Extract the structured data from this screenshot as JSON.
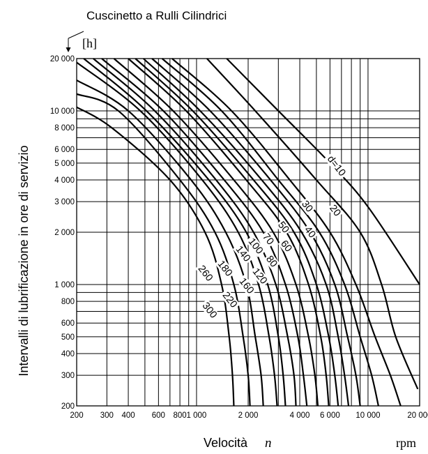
{
  "chart_data": {
    "type": "line",
    "title": "Cuscinetto a Rulli Cilindrici",
    "xlabel": "Velocità",
    "xlabel_symbol": "n",
    "xunit": "rpm",
    "ylabel": "Intervalli di lubrificazione in ore di servizio",
    "yunit": "[h]",
    "x_scale": "log",
    "y_scale": "log",
    "xlim": [
      200,
      20000
    ],
    "ylim": [
      200,
      20000
    ],
    "grid": true,
    "x_ticks": [
      {
        "value": 200,
        "label": "200"
      },
      {
        "value": 300,
        "label": "300"
      },
      {
        "value": 400,
        "label": "400"
      },
      {
        "value": 600,
        "label": "600"
      },
      {
        "value": 800,
        "label": "800"
      },
      {
        "value": 1000,
        "label": "1 000"
      },
      {
        "value": 2000,
        "label": "2 000"
      },
      {
        "value": 4000,
        "label": "4 000"
      },
      {
        "value": 6000,
        "label": "6 000"
      },
      {
        "value": 10000,
        "label": "10 000"
      },
      {
        "value": 20000,
        "label": "20 000"
      }
    ],
    "x_grid": [
      200,
      300,
      400,
      500,
      600,
      700,
      800,
      900,
      1000,
      2000,
      3000,
      4000,
      5000,
      6000,
      7000,
      8000,
      9000,
      10000,
      20000
    ],
    "y_ticks": [
      {
        "value": 200,
        "label": "200"
      },
      {
        "value": 300,
        "label": "300"
      },
      {
        "value": 400,
        "label": "400"
      },
      {
        "value": 500,
        "label": "500"
      },
      {
        "value": 600,
        "label": "600"
      },
      {
        "value": 800,
        "label": "800"
      },
      {
        "value": 1000,
        "label": "1 000"
      },
      {
        "value": 2000,
        "label": "2 000"
      },
      {
        "value": 3000,
        "label": "3 000"
      },
      {
        "value": 4000,
        "label": "4 000"
      },
      {
        "value": 5000,
        "label": "5 000"
      },
      {
        "value": 6000,
        "label": "6 000"
      },
      {
        "value": 8000,
        "label": "8 000"
      },
      {
        "value": 10000,
        "label": "10 000"
      },
      {
        "value": 20000,
        "label": "20 000"
      }
    ],
    "y_grid": [
      200,
      300,
      400,
      500,
      600,
      700,
      800,
      900,
      1000,
      2000,
      3000,
      4000,
      5000,
      6000,
      7000,
      8000,
      9000,
      10000,
      20000
    ],
    "series": [
      {
        "name": "d=10",
        "label": "d=10",
        "points": [
          [
            1500,
            20000
          ],
          [
            3000,
            10000
          ],
          [
            6000,
            5000
          ],
          [
            10000,
            2800
          ],
          [
            20000,
            1000
          ]
        ]
      },
      {
        "name": "20",
        "label": "20",
        "points": [
          [
            1150,
            20000
          ],
          [
            2200,
            10000
          ],
          [
            5000,
            4000
          ],
          [
            9000,
            2000
          ],
          [
            12000,
            1000
          ],
          [
            14500,
            500
          ],
          [
            19500,
            250
          ]
        ]
      },
      {
        "name": "30",
        "label": "30",
        "points": [
          [
            720,
            20000
          ],
          [
            1600,
            10000
          ],
          [
            3500,
            4000
          ],
          [
            6000,
            2000
          ],
          [
            8500,
            1000
          ],
          [
            11000,
            500
          ],
          [
            13500,
            300
          ],
          [
            15500,
            200
          ]
        ]
      },
      {
        "name": "40",
        "label": "40",
        "points": [
          [
            630,
            20000
          ],
          [
            1400,
            10000
          ],
          [
            3000,
            4000
          ],
          [
            5200,
            2000
          ],
          [
            7300,
            1000
          ],
          [
            9000,
            500
          ],
          [
            10500,
            300
          ],
          [
            11500,
            200
          ]
        ]
      },
      {
        "name": "50",
        "label": "50",
        "points": [
          [
            550,
            20000
          ],
          [
            1200,
            10000
          ],
          [
            2700,
            4000
          ],
          [
            4600,
            2000
          ],
          [
            6400,
            1000
          ],
          [
            7600,
            500
          ],
          [
            8500,
            300
          ],
          [
            9000,
            200
          ]
        ]
      },
      {
        "name": "60",
        "label": "60",
        "points": [
          [
            490,
            20000
          ],
          [
            1050,
            10000
          ],
          [
            2400,
            4000
          ],
          [
            4100,
            2000
          ],
          [
            5700,
            1000
          ],
          [
            6700,
            500
          ],
          [
            7300,
            300
          ],
          [
            7700,
            200
          ]
        ]
      },
      {
        "name": "70",
        "label": "70",
        "points": [
          [
            440,
            20000
          ],
          [
            950,
            10000
          ],
          [
            2150,
            4000
          ],
          [
            3700,
            2000
          ],
          [
            5000,
            1000
          ],
          [
            5900,
            500
          ],
          [
            6400,
            300
          ],
          [
            6700,
            200
          ]
        ]
      },
      {
        "name": "80",
        "label": "80",
        "points": [
          [
            400,
            20000
          ],
          [
            870,
            10000
          ],
          [
            1950,
            4000
          ],
          [
            3350,
            2000
          ],
          [
            4500,
            1000
          ],
          [
            5300,
            500
          ],
          [
            5700,
            300
          ],
          [
            5900,
            200
          ]
        ]
      },
      {
        "name": "100",
        "label": "100",
        "points": [
          [
            330,
            20000
          ],
          [
            730,
            10000
          ],
          [
            1650,
            4000
          ],
          [
            2800,
            2000
          ],
          [
            3800,
            1000
          ],
          [
            4500,
            500
          ],
          [
            4900,
            300
          ],
          [
            5100,
            200
          ]
        ]
      },
      {
        "name": "120",
        "label": "120",
        "points": [
          [
            280,
            20000
          ],
          [
            640,
            10000
          ],
          [
            1450,
            4000
          ],
          [
            2450,
            2000
          ],
          [
            3300,
            1000
          ],
          [
            3900,
            500
          ],
          [
            4200,
            300
          ],
          [
            4400,
            200
          ]
        ]
      },
      {
        "name": "140",
        "label": "140",
        "points": [
          [
            250,
            20000
          ],
          [
            570,
            10000
          ],
          [
            1300,
            4000
          ],
          [
            2150,
            2000
          ],
          [
            2900,
            1000
          ],
          [
            3400,
            500
          ],
          [
            3700,
            300
          ],
          [
            3800,
            200
          ]
        ]
      },
      {
        "name": "160",
        "label": "160",
        "points": [
          [
            220,
            20000
          ],
          [
            510,
            10000
          ],
          [
            1180,
            4000
          ],
          [
            1950,
            2000
          ],
          [
            2600,
            1000
          ],
          [
            3000,
            500
          ],
          [
            3200,
            300
          ],
          [
            3300,
            200
          ]
        ]
      },
      {
        "name": "180",
        "label": "180",
        "points": [
          [
            200,
            19000
          ],
          [
            470,
            10000
          ],
          [
            1080,
            4000
          ],
          [
            1750,
            2000
          ],
          [
            2300,
            1000
          ],
          [
            2650,
            500
          ],
          [
            2850,
            300
          ],
          [
            2950,
            200
          ]
        ]
      },
      {
        "name": "220",
        "label": "220",
        "points": [
          [
            200,
            15000
          ],
          [
            400,
            10000
          ],
          [
            930,
            4000
          ],
          [
            1480,
            2000
          ],
          [
            1950,
            1000
          ],
          [
            2200,
            500
          ],
          [
            2380,
            300
          ],
          [
            2450,
            200
          ]
        ]
      },
      {
        "name": "260",
        "label": "260",
        "points": [
          [
            200,
            12500
          ],
          [
            350,
            10000
          ],
          [
            800,
            4000
          ],
          [
            1280,
            2000
          ],
          [
            1650,
            1000
          ],
          [
            1870,
            500
          ],
          [
            2000,
            300
          ],
          [
            2050,
            200
          ]
        ]
      },
      {
        "name": "300",
        "label": "300",
        "points": [
          [
            200,
            10500
          ],
          [
            320,
            8000
          ],
          [
            700,
            4000
          ],
          [
            1120,
            2000
          ],
          [
            1400,
            1000
          ],
          [
            1550,
            500
          ],
          [
            1620,
            300
          ],
          [
            1650,
            200
          ]
        ]
      }
    ]
  }
}
